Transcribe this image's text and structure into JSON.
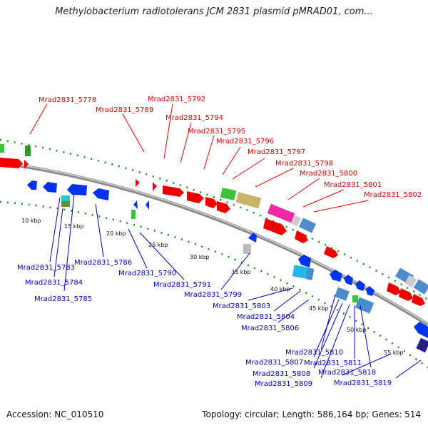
{
  "header": {
    "title": "Methylobacterium radiotolerans JCM 2831 plasmid pMRAD01, com..."
  },
  "footer": {
    "accession": "Accession: NC_010510",
    "stats": "Topology: circular; Length: 586,164 bp; Genes: 514"
  },
  "ticks": [
    "10 kbp",
    "15 kbp",
    "20 kbp",
    "25 kbp",
    "30 kbp",
    "35 kbp",
    "40 kbp",
    "45 kbp",
    "50 kbp",
    "55 kbp"
  ],
  "genes_forward": [
    "Mrad2831_5778",
    "Mrad2831_5789",
    "Mrad2831_5792",
    "Mrad2831_5794",
    "Mrad2831_5795",
    "Mrad2831_5796",
    "Mrad2831_5797",
    "Mrad2831_5798",
    "Mrad2831_5800",
    "Mrad2831_5801",
    "Mrad2831_5802"
  ],
  "genes_reverse": [
    "Mrad2831_5783",
    "Mrad2831_5784",
    "Mrad2831_5785",
    "Mrad2831_5786",
    "Mrad2831_5790",
    "Mrad2831_5791",
    "Mrad2831_5799",
    "Mrad2831_5803",
    "Mrad2831_5804",
    "Mrad2831_5806",
    "Mrad2831_5807",
    "Mrad2831_5808",
    "Mrad2831_5809",
    "Mrad2831_5810",
    "Mrad2831_5811",
    "Mrad2831_5818",
    "Mrad2831_5819"
  ],
  "colors": {
    "forward_label": "#e00000",
    "reverse_label": "#0000cc",
    "backbone": "#8a8a8a",
    "tick": "#1a8a1a"
  }
}
